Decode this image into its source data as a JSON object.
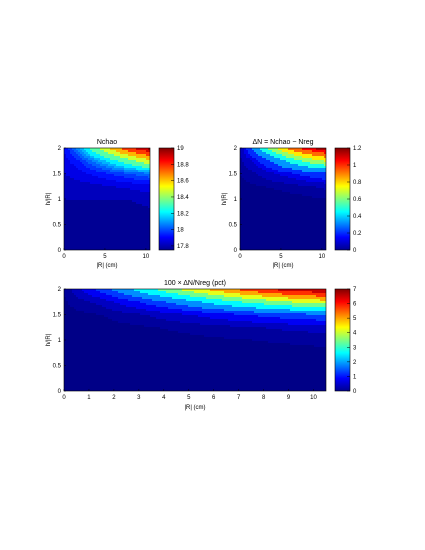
{
  "chart_data": [
    {
      "type": "heatmap",
      "title": "Nchao",
      "xlabel": "|R| (cm)",
      "ylabel": "h/|R|",
      "xlim": [
        0,
        10.5
      ],
      "ylim": [
        0,
        2
      ],
      "xticks": [
        0,
        5,
        10
      ],
      "yticks": [
        0,
        0.5,
        1,
        1.5,
        2
      ],
      "colorbar": {
        "range": [
          17.75,
          19.0
        ],
        "ticks": [
          17.8,
          18,
          18.2,
          18.4,
          18.6,
          18.8,
          19
        ]
      },
      "contour_levels": [
        17.8,
        17.85,
        17.9,
        17.95,
        18.0,
        18.05,
        18.1,
        18.15,
        18.25,
        18.4,
        18.55,
        18.7,
        18.85,
        18.95
      ],
      "x": [
        0,
        1.5,
        3,
        4.5,
        6,
        7.5,
        9,
        10.5
      ],
      "y": [
        0,
        0.25,
        0.5,
        0.75,
        1,
        1.25,
        1.5,
        1.75,
        2
      ],
      "z": [
        [
          17.76,
          17.76,
          17.76,
          17.76,
          17.76,
          17.76,
          17.76,
          17.76
        ],
        [
          17.76,
          17.76,
          17.76,
          17.76,
          17.76,
          17.76,
          17.76,
          17.76
        ],
        [
          17.77,
          17.77,
          17.76,
          17.76,
          17.76,
          17.76,
          17.77,
          17.77
        ],
        [
          17.78,
          17.78,
          17.77,
          17.77,
          17.77,
          17.77,
          17.78,
          17.79
        ],
        [
          17.8,
          17.8,
          17.8,
          17.8,
          17.8,
          17.8,
          17.81,
          17.82
        ],
        [
          17.82,
          17.83,
          17.83,
          17.84,
          17.85,
          17.86,
          17.87,
          17.88
        ],
        [
          17.85,
          17.87,
          17.9,
          17.93,
          17.96,
          17.99,
          18.02,
          18.05
        ],
        [
          17.88,
          17.93,
          18.02,
          18.12,
          18.22,
          18.32,
          18.42,
          18.52
        ],
        [
          17.9,
          18.05,
          18.25,
          18.45,
          18.62,
          18.78,
          18.9,
          19.0
        ]
      ]
    },
    {
      "type": "heatmap",
      "title": "ΔN = Nchao − Nreg",
      "xlabel": "|R| (cm)",
      "ylabel": "h/|R|",
      "xlim": [
        0,
        10.5
      ],
      "ylim": [
        0,
        2
      ],
      "xticks": [
        0,
        5,
        10
      ],
      "yticks": [
        0,
        0.5,
        1,
        1.5,
        2
      ],
      "colorbar": {
        "range": [
          0,
          1.2
        ],
        "ticks": [
          0,
          0.2,
          0.4,
          0.6,
          0.8,
          1,
          1.2
        ]
      },
      "contour_levels": [
        0.02,
        0.05,
        0.1,
        0.15,
        0.25,
        0.4,
        0.55,
        0.7,
        0.85,
        1.0,
        1.1
      ],
      "x": [
        0,
        1.5,
        3,
        4.5,
        6,
        7.5,
        9,
        10.5
      ],
      "y": [
        0,
        0.25,
        0.5,
        0.75,
        1,
        1.25,
        1.5,
        1.75,
        2
      ],
      "z": [
        [
          0,
          0,
          0,
          0,
          0,
          0,
          0,
          0
        ],
        [
          0,
          0,
          0,
          0,
          0,
          0,
          0,
          0
        ],
        [
          0,
          0,
          0,
          0,
          0,
          0,
          0,
          0
        ],
        [
          0,
          0,
          0,
          0,
          0,
          0,
          0,
          0.01
        ],
        [
          0.005,
          0.005,
          0.005,
          0.005,
          0.01,
          0.01,
          0.015,
          0.02
        ],
        [
          0.01,
          0.015,
          0.02,
          0.025,
          0.03,
          0.04,
          0.05,
          0.06
        ],
        [
          0.02,
          0.04,
          0.07,
          0.1,
          0.13,
          0.17,
          0.2,
          0.23
        ],
        [
          0.04,
          0.1,
          0.2,
          0.32,
          0.44,
          0.55,
          0.65,
          0.72
        ],
        [
          0.05,
          0.25,
          0.5,
          0.72,
          0.9,
          1.04,
          1.13,
          1.2
        ]
      ]
    },
    {
      "type": "heatmap",
      "title": "100 × ΔN/Nreg (pct)",
      "xlabel": "|R| (cm)",
      "ylabel": "h/|R|",
      "xlim": [
        0,
        10.5
      ],
      "ylim": [
        0,
        2
      ],
      "xticks": [
        0,
        1,
        2,
        3,
        4,
        5,
        6,
        7,
        8,
        9,
        10
      ],
      "yticks": [
        0,
        0.5,
        1,
        1.5,
        2
      ],
      "colorbar": {
        "range": [
          0,
          7
        ],
        "ticks": [
          0,
          1,
          2,
          3,
          4,
          5,
          6,
          7
        ]
      },
      "contour_levels": [
        0.1,
        0.3,
        0.6,
        1.0,
        1.5,
        2.2,
        3.0,
        3.8,
        4.6,
        5.4,
        6.2,
        6.8
      ],
      "x": [
        0,
        1.5,
        3,
        4.5,
        6,
        7.5,
        9,
        10.5
      ],
      "y": [
        0,
        0.25,
        0.5,
        0.75,
        1,
        1.25,
        1.5,
        1.75,
        2
      ],
      "z": [
        [
          0,
          0,
          0,
          0,
          0,
          0,
          0,
          0
        ],
        [
          0,
          0,
          0,
          0,
          0,
          0,
          0,
          0
        ],
        [
          0,
          0,
          0,
          0,
          0,
          0,
          0,
          0
        ],
        [
          0,
          0,
          0,
          0,
          0.01,
          0.02,
          0.03,
          0.05
        ],
        [
          0,
          0.01,
          0.02,
          0.04,
          0.07,
          0.1,
          0.13,
          0.16
        ],
        [
          0.01,
          0.03,
          0.07,
          0.13,
          0.2,
          0.28,
          0.36,
          0.42
        ],
        [
          0.03,
          0.1,
          0.26,
          0.5,
          0.78,
          1.05,
          1.3,
          1.5
        ],
        [
          0.07,
          0.4,
          1.0,
          1.7,
          2.5,
          3.2,
          3.8,
          4.3
        ],
        [
          0.1,
          1.2,
          2.5,
          3.8,
          4.9,
          5.9,
          6.6,
          7.0
        ]
      ]
    }
  ]
}
